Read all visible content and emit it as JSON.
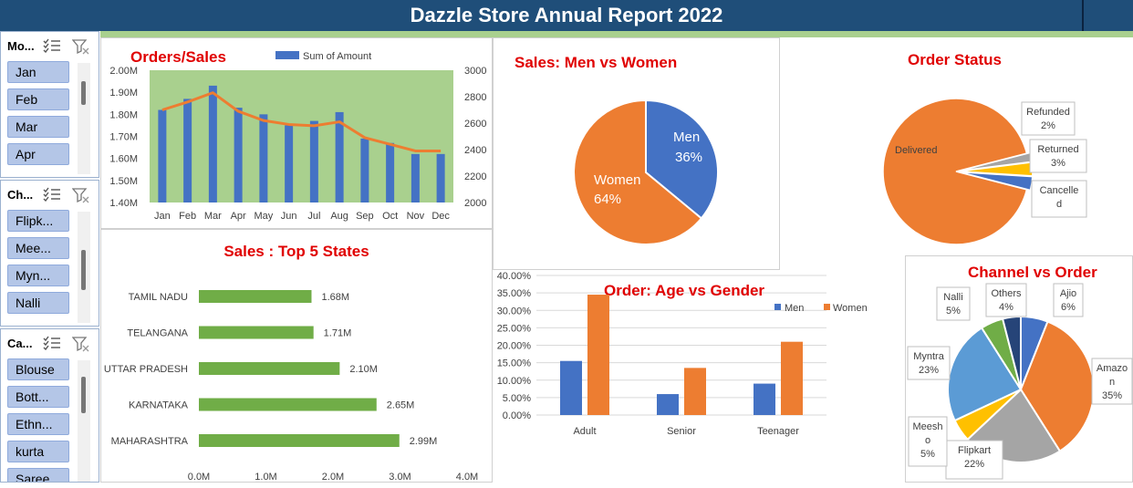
{
  "header": {
    "title": "Dazzle Store Annual Report 2022"
  },
  "slicers": [
    {
      "title": "Mo...",
      "items": [
        "Jan",
        "Feb",
        "Mar",
        "Apr"
      ]
    },
    {
      "title": "Ch...",
      "items": [
        "Flipk...",
        "Mee...",
        "Myn...",
        "Nalli"
      ]
    },
    {
      "title": "Ca...",
      "items": [
        "Blouse",
        "Bott...",
        "Ethn...",
        "kurta",
        "Saree"
      ]
    }
  ],
  "colors": {
    "title_red": "#e00000",
    "blue": "#4472c4",
    "orange": "#ed7d31",
    "green": "#70ad47",
    "plot_green": "#a9d08e",
    "header_blue": "#1f4e79"
  },
  "chart_data": [
    {
      "id": "orders_sales",
      "type": "bar",
      "title": "Orders/Sales",
      "legend": [
        "Sum of Amount"
      ],
      "categories": [
        "Jan",
        "Feb",
        "Mar",
        "Apr",
        "May",
        "Jun",
        "Jul",
        "Aug",
        "Sep",
        "Oct",
        "Nov",
        "Dec"
      ],
      "series": [
        {
          "name": "Sum of Amount",
          "type": "bar",
          "axis": "left",
          "values": [
            1.82,
            1.87,
            1.93,
            1.83,
            1.8,
            1.75,
            1.77,
            1.81,
            1.69,
            1.67,
            1.62,
            1.62
          ]
        },
        {
          "type": "line",
          "axis": "right",
          "values": [
            2700,
            2760,
            2830,
            2690,
            2620,
            2590,
            2580,
            2610,
            2490,
            2440,
            2390,
            2390
          ]
        }
      ],
      "ylim": [
        1.4,
        2.0
      ],
      "yticks": [
        "2.00M",
        "1.90M",
        "1.80M",
        "1.70M",
        "1.60M",
        "1.50M",
        "1.40M"
      ],
      "y2lim": [
        2000,
        3000
      ],
      "y2ticks": [
        "3000",
        "2800",
        "2600",
        "2400",
        "2200",
        "2000"
      ]
    },
    {
      "id": "men_women",
      "type": "pie",
      "title": "Sales: Men vs Women",
      "labels": [
        "Men",
        "Women"
      ],
      "values": [
        36,
        64
      ],
      "display": [
        "36%",
        "64%"
      ]
    },
    {
      "id": "order_status",
      "type": "pie",
      "title": "Order Status",
      "labels": [
        "Delivered",
        "Refunded",
        "Returned",
        "Cancelled"
      ],
      "label_lines": [
        [
          "Delivered"
        ],
        [
          "Refunded",
          "2%"
        ],
        [
          "Returned",
          "3%"
        ],
        [
          "Cancelle",
          "d"
        ]
      ],
      "values": [
        92,
        2,
        3,
        3
      ]
    },
    {
      "id": "top_states",
      "type": "bar",
      "orientation": "horizontal",
      "title": "Sales : Top 5 States",
      "categories": [
        "TAMIL NADU",
        "TELANGANA",
        "UTTAR PRADESH",
        "KARNATAKA",
        "MAHARASHTRA"
      ],
      "values": [
        1.68,
        1.71,
        2.1,
        2.65,
        2.99
      ],
      "data_labels": [
        "1.68M",
        "1.71M",
        "2.10M",
        "2.65M",
        "2.99M"
      ],
      "xlim": [
        0,
        4
      ],
      "xticks": [
        "0.0M",
        "1.0M",
        "2.0M",
        "3.0M",
        "4.0M"
      ]
    },
    {
      "id": "age_gender",
      "type": "bar",
      "title": "Order: Age vs Gender",
      "categories": [
        "Adult",
        "Senior",
        "Teenager"
      ],
      "series": [
        {
          "name": "Men",
          "values": [
            15.5,
            6.0,
            9.0
          ]
        },
        {
          "name": "Women",
          "values": [
            34.5,
            13.5,
            21.0
          ]
        }
      ],
      "ylim": [
        0,
        40
      ],
      "yticks": [
        "40.00%",
        "35.00%",
        "30.00%",
        "25.00%",
        "20.00%",
        "15.00%",
        "10.00%",
        "5.00%",
        "0.00%"
      ]
    },
    {
      "id": "channel_order",
      "type": "pie",
      "title": "Channel vs Order",
      "labels": [
        "Ajio",
        "Amazon",
        "Flipkart",
        "Meesho",
        "Myntra",
        "Nalli",
        "Others"
      ],
      "label_lines": [
        [
          "Ajio",
          "6%"
        ],
        [
          "Amazo",
          "n",
          "35%"
        ],
        [
          "Flipkart",
          "22%"
        ],
        [
          "Meesh",
          "o",
          "5%"
        ],
        [
          "Myntra",
          "23%"
        ],
        [
          "Nalli",
          "5%"
        ],
        [
          "Others",
          "4%"
        ]
      ],
      "values": [
        6,
        35,
        22,
        5,
        23,
        5,
        4
      ]
    }
  ]
}
